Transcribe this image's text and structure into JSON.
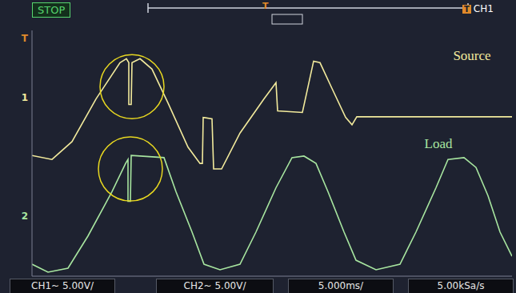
{
  "chart_data": {
    "type": "line",
    "header": {
      "status": "STOP",
      "trigger_marker": "T",
      "trigger_source": "CH1"
    },
    "footer": [
      "CH1~ 5.00V/",
      "CH2~ 5.00V/",
      "5.000ms/",
      "5.00kSa/s"
    ],
    "series": [
      {
        "name": "Source",
        "color": "#f2ea9c",
        "label_x": 55,
        "label_y": 3.2,
        "x": [
          0,
          2.5,
          5,
          8,
          11,
          11.8,
          12.1,
          12.1,
          12.4,
          12.5,
          13.5,
          15,
          17,
          19.5,
          21,
          21.3,
          21.4,
          22.5,
          22.7,
          23.7,
          26,
          29,
          30.5,
          30.7,
          33.8,
          35.2,
          36,
          37.5,
          39.2,
          40,
          40.6,
          60
        ],
        "values": [
          -0.07,
          -0.2,
          0.38,
          1.77,
          2.95,
          3.08,
          2.95,
          1.59,
          1.59,
          2.95,
          3.08,
          2.74,
          1.64,
          0.2,
          -0.33,
          -0.33,
          1.17,
          1.12,
          -0.51,
          -0.51,
          0.66,
          1.77,
          2.3,
          1.38,
          1.33,
          3.0,
          2.95,
          2.11,
          1.17,
          0.93,
          1.19,
          1.19
        ]
      },
      {
        "name": "Load",
        "color": "#a8e6a0",
        "label_x": 50.8,
        "label_y": 0.33,
        "x": [
          0,
          2,
          4.5,
          7,
          10,
          11.7,
          12,
          12,
          12.3,
          12.4,
          16.5,
          18,
          20,
          21.5,
          23.5,
          26,
          28,
          30.5,
          32.5,
          34,
          35.5,
          37,
          39,
          40.5,
          43,
          46,
          48,
          50.5,
          52,
          54,
          55.5,
          57,
          58.5,
          60
        ],
        "values": [
          -3.61,
          -3.87,
          -3.74,
          -2.69,
          -1.25,
          -0.33,
          -0.2,
          -1.56,
          -1.56,
          -0.07,
          -0.14,
          -1.25,
          -2.56,
          -3.61,
          -3.79,
          -3.61,
          -2.56,
          -1.12,
          -0.14,
          -0.09,
          -0.33,
          -1.25,
          -2.56,
          -3.48,
          -3.79,
          -3.61,
          -2.56,
          -1.12,
          -0.2,
          -0.14,
          -0.46,
          -1.38,
          -2.56,
          -3.35
        ]
      }
    ],
    "channel_markers": [
      {
        "label": "T",
        "y": 3.74,
        "color": "#e08a2a"
      },
      {
        "label": "1",
        "y": 1.82,
        "color": "#f2ea9c"
      },
      {
        "label": "2",
        "y": -2.03,
        "color": "#a8e6a0"
      }
    ],
    "circles": [
      {
        "x": 12.5,
        "y": 2.17,
        "color": "#e8d820"
      },
      {
        "x": 12.3,
        "y": -0.51,
        "color": "#e8d820"
      }
    ],
    "xlim": [
      0,
      60
    ],
    "xticks": [
      0,
      5,
      10,
      15,
      20,
      25,
      30,
      35,
      40,
      45,
      50,
      55,
      60
    ],
    "ylim": [
      -4,
      4
    ],
    "yticks": [
      -4,
      -3,
      -2,
      -1,
      0,
      1,
      2,
      3,
      4
    ],
    "grid": true,
    "tick_labels": false
  }
}
